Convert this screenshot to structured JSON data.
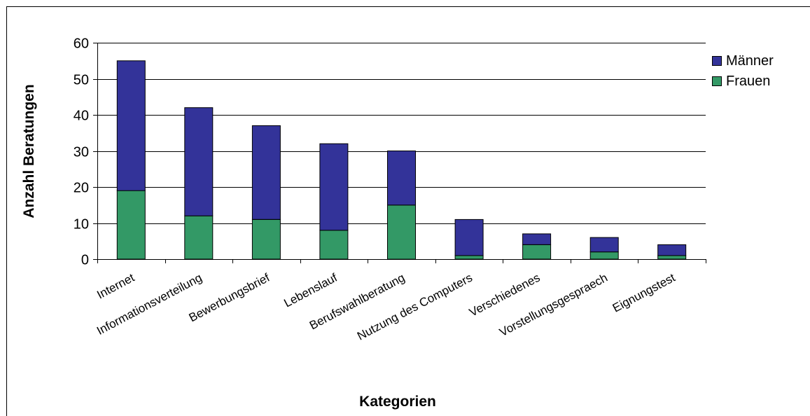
{
  "chart_data": {
    "type": "bar",
    "stacked": true,
    "title": "",
    "xlabel": "Kategorien",
    "ylabel": "Anzahl Beratungen",
    "ylim": [
      0,
      60
    ],
    "yticks": [
      "0",
      "10",
      "20",
      "30",
      "40",
      "50",
      "60"
    ],
    "grid": true,
    "legend_position": "right",
    "categories": [
      "Internet",
      "Informationsverteilung",
      "Bewerbungsbrief",
      "Lebenslauf",
      "Berufswahlberatung",
      "Nutzung des Computers",
      "Verschiedenes",
      "Vorstellungsgespraech",
      "Eignungstest"
    ],
    "series": [
      {
        "name": "Frauen",
        "color": "#339966",
        "values": [
          19,
          12,
          11,
          8,
          15,
          1,
          4,
          2,
          1
        ]
      },
      {
        "name": "Männer",
        "color": "#333399",
        "values": [
          36,
          30,
          26,
          24,
          15,
          10,
          3,
          4,
          3
        ]
      }
    ],
    "legend": [
      "Männer",
      "Frauen"
    ]
  }
}
